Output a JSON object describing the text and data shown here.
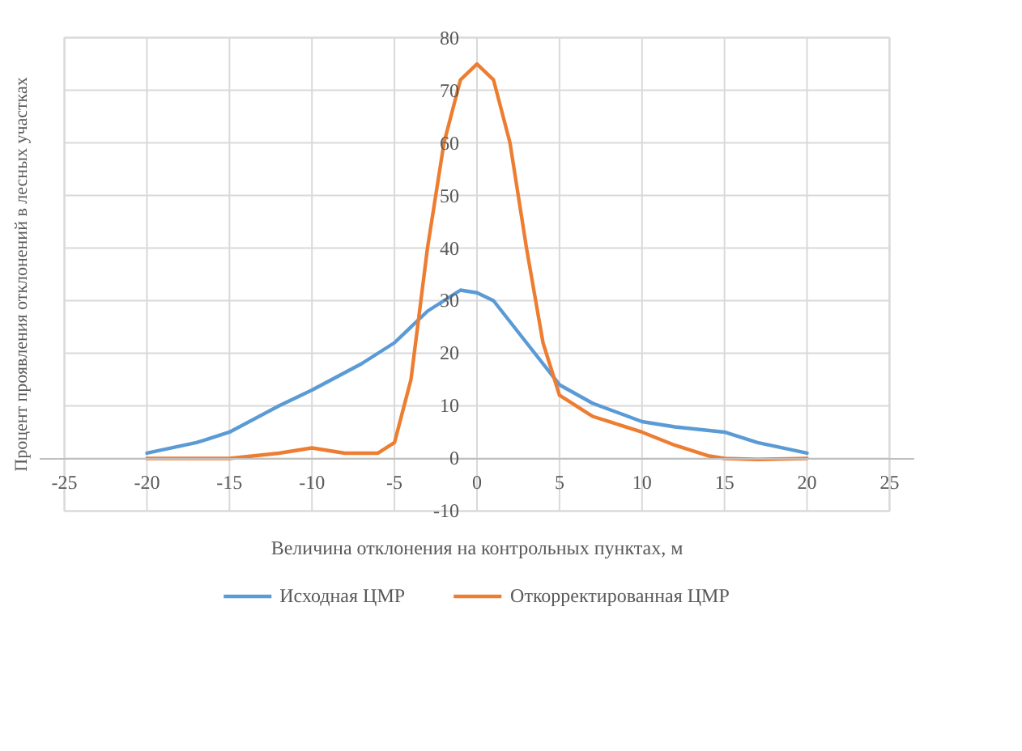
{
  "chart_data": {
    "type": "line",
    "xlabel": "Величина отклонения на контрольных пунктах, м",
    "ylabel": "Процент проявления отклонений в лесных участках",
    "xlim": [
      -25,
      25
    ],
    "xticks": [
      -25,
      -20,
      -15,
      -10,
      -5,
      0,
      5,
      10,
      15,
      20,
      25
    ],
    "ylim": [
      -10,
      80
    ],
    "yticks": [
      -10,
      0,
      10,
      20,
      30,
      40,
      50,
      60,
      70,
      80
    ],
    "grid": true,
    "legend": "bottom",
    "marker": "none",
    "line_style": "solid",
    "series": [
      {
        "name": "Исходная ЦМР",
        "color": "#5b9bd5",
        "x": [
          -20,
          -17,
          -15,
          -12,
          -10,
          -7,
          -5,
          -3,
          -1,
          0,
          1,
          3,
          5,
          7,
          10,
          12,
          15,
          17,
          20
        ],
        "values": [
          1,
          3,
          5,
          10,
          13,
          18,
          22,
          28,
          32,
          31.5,
          30,
          22,
          14,
          10.5,
          7,
          6,
          5,
          3,
          1
        ]
      },
      {
        "name": "Откорректированная ЦМР",
        "color": "#ed7d31",
        "x": [
          -20,
          -15,
          -12,
          -10,
          -8,
          -6,
          -5,
          -4,
          -3,
          -2,
          -1,
          0,
          1,
          2,
          3,
          4,
          5,
          6,
          7,
          8,
          10,
          12,
          14,
          15,
          17,
          20
        ],
        "values": [
          0,
          0,
          1,
          2,
          1,
          1,
          3,
          15,
          40,
          60,
          72,
          75,
          72,
          60,
          40,
          22,
          12,
          10,
          8,
          7,
          5,
          2.5,
          0.5,
          0,
          -0.2,
          0
        ]
      }
    ]
  }
}
